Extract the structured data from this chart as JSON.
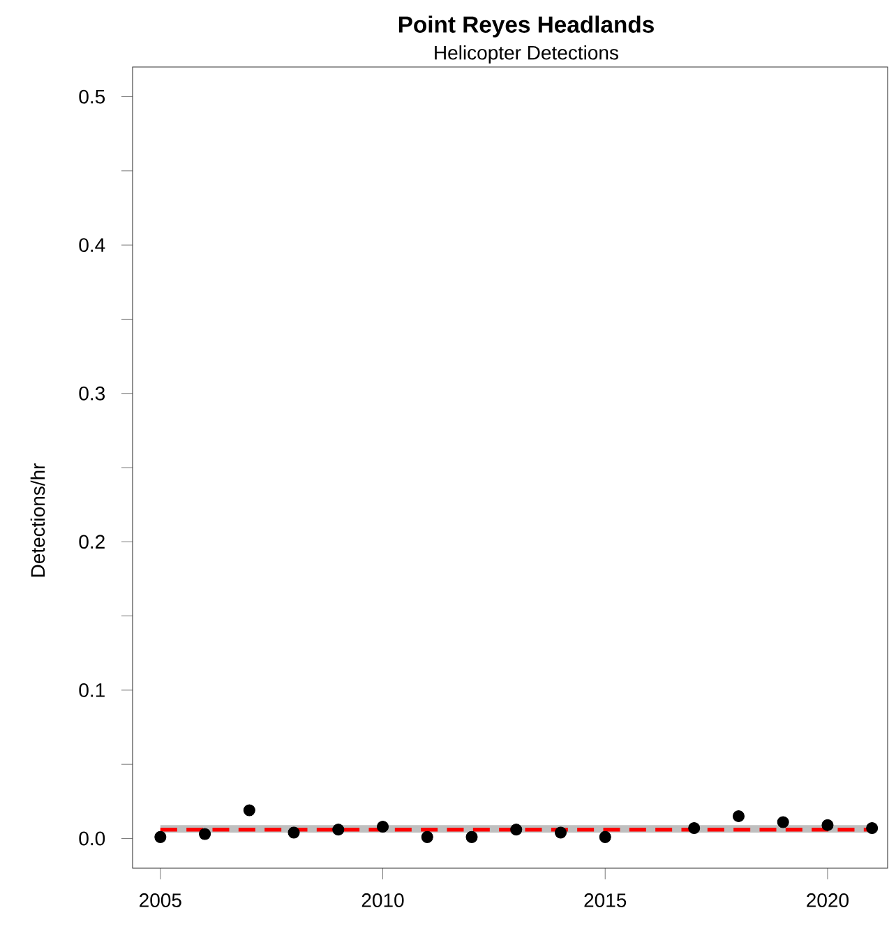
{
  "chart_data": {
    "type": "scatter",
    "title": "Point Reyes Headlands",
    "subtitle": "Helicopter Detections",
    "ylabel": "Detections/hr",
    "x": [
      2005,
      2006,
      2007,
      2008,
      2009,
      2010,
      2011,
      2012,
      2013,
      2014,
      2015,
      2017,
      2018,
      2019,
      2020,
      2021
    ],
    "series": [
      {
        "type": "scatter",
        "color": "#000000",
        "marker": "circle",
        "values": [
          0.001,
          0.003,
          0.019,
          0.004,
          0.006,
          0.008,
          0.001,
          0.001,
          0.006,
          0.004,
          0.001,
          0.007,
          0.015,
          0.011,
          0.009,
          0.007
        ]
      },
      {
        "type": "line",
        "color": "#ff0000",
        "marker": "none",
        "line_style": "dashed",
        "x": [
          2005,
          2021
        ],
        "values": [
          0.006,
          0.006
        ],
        "lower": [
          0.004,
          0.004
        ],
        "upper": [
          0.009,
          0.009
        ]
      }
    ],
    "xlim": [
      2004.375,
      2021.35
    ],
    "ylim": [
      -0.02,
      0.52
    ],
    "xticks": [
      2005,
      2010,
      2015,
      2020
    ],
    "yticks": [
      {
        "value": 0,
        "label": "0.0"
      },
      {
        "value": 0.05,
        "label": null
      },
      {
        "value": 0.1,
        "label": "0.1"
      },
      {
        "value": 0.15,
        "label": null
      },
      {
        "value": 0.2,
        "label": "0.2"
      },
      {
        "value": 0.25,
        "label": null
      },
      {
        "value": 0.3,
        "label": "0.3"
      },
      {
        "value": 0.35,
        "label": null
      },
      {
        "value": 0.4,
        "label": "0.4"
      },
      {
        "value": 0.45,
        "label": null
      },
      {
        "value": 0.5,
        "label": "0.5"
      }
    ],
    "grid": false
  }
}
